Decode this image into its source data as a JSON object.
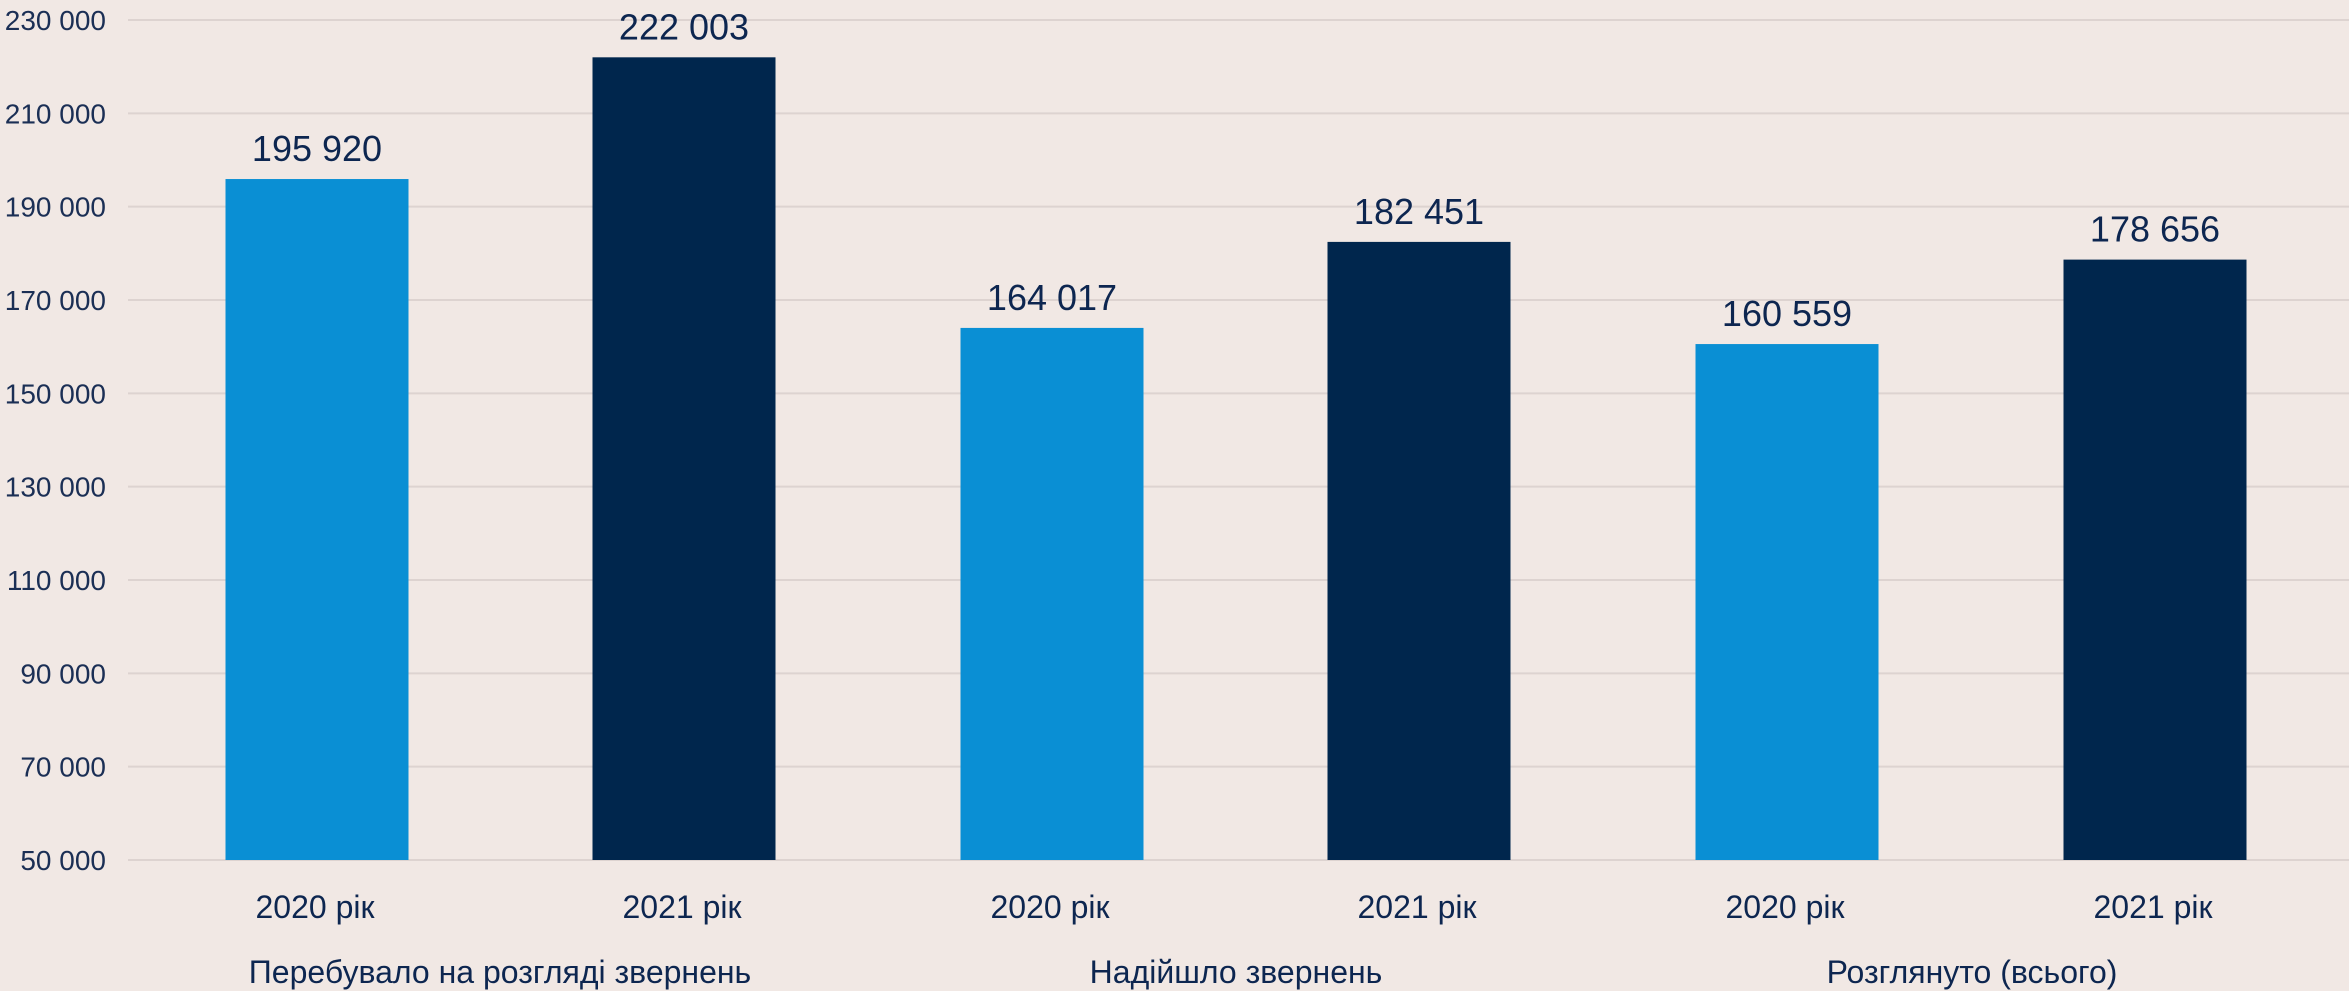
{
  "chart_data": {
    "type": "bar",
    "title": "",
    "xlabel": "",
    "ylabel": "",
    "ylim": [
      50000,
      230000
    ],
    "yticks": [
      50000,
      70000,
      90000,
      110000,
      130000,
      150000,
      170000,
      190000,
      210000,
      230000
    ],
    "ytick_labels": [
      "50 000",
      "70 000",
      "90 000",
      "110 000",
      "130 000",
      "150 000",
      "170 000",
      "190 000",
      "210 000",
      "230 000"
    ],
    "grid": true,
    "legend": "none",
    "groups": [
      {
        "label": "Перебувало на розгляді звернень",
        "bars": [
          {
            "label": "2020 рік",
            "value": 195920,
            "value_label": "195 920",
            "color": "#0a8fd4"
          },
          {
            "label": "2021 рік",
            "value": 222003,
            "value_label": "222 003",
            "color": "#00264d"
          }
        ]
      },
      {
        "label": "Надійшло звернень",
        "bars": [
          {
            "label": "2020 рік",
            "value": 164017,
            "value_label": "164 017",
            "color": "#0a8fd4"
          },
          {
            "label": "2021 рік",
            "value": 182451,
            "value_label": "182 451",
            "color": "#00264d"
          }
        ]
      },
      {
        "label": "Розглянуто (всього)",
        "bars": [
          {
            "label": "2020 рік",
            "value": 160559,
            "value_label": "160 559",
            "color": "#0a8fd4"
          },
          {
            "label": "2021 рік",
            "value": 178656,
            "value_label": "178 656",
            "color": "#00264d"
          }
        ]
      }
    ]
  },
  "colors": {
    "background": "#f1e8e4",
    "grid": "#ddd3d0",
    "bar_2020": "#0a8fd4",
    "bar_2021": "#00264d",
    "text": "#0d2650"
  }
}
